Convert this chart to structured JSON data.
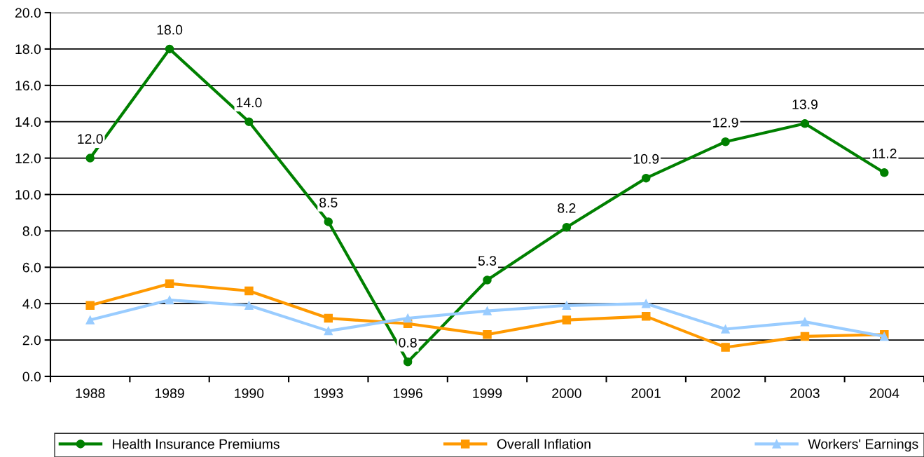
{
  "chart_data": {
    "type": "line",
    "categories": [
      "1988",
      "1989",
      "1990",
      "1993",
      "1996",
      "1999",
      "2000",
      "2001",
      "2002",
      "2003",
      "2004"
    ],
    "series": [
      {
        "name": "Health Insurance Premiums",
        "color": "#008000",
        "marker": "circle",
        "values": [
          12.0,
          18.0,
          14.0,
          8.5,
          0.8,
          5.3,
          8.2,
          10.9,
          12.9,
          13.9,
          11.2
        ],
        "value_labels": [
          "12.0",
          "18.0",
          "14.0",
          "8.5",
          "0.8",
          "5.3",
          "8.2",
          "10.9",
          "12.9",
          "13.9",
          "11.2"
        ]
      },
      {
        "name": "Overall Inflation",
        "color": "#ff9900",
        "marker": "square",
        "values": [
          3.9,
          5.1,
          4.7,
          3.2,
          2.9,
          2.3,
          3.1,
          3.3,
          1.6,
          2.2,
          2.3
        ]
      },
      {
        "name": "Workers' Earnings",
        "color": "#99ccff",
        "marker": "triangle",
        "values": [
          3.1,
          4.2,
          3.9,
          2.5,
          3.2,
          3.6,
          3.9,
          4.0,
          2.6,
          3.0,
          2.2
        ]
      }
    ],
    "ylim": [
      0,
      20
    ],
    "yticks": [
      {
        "value": 0,
        "label": "0.0"
      },
      {
        "value": 2,
        "label": "2.0"
      },
      {
        "value": 4,
        "label": "4.0"
      },
      {
        "value": 6,
        "label": "6.0"
      },
      {
        "value": 8,
        "label": "8.0"
      },
      {
        "value": 10,
        "label": "10.0"
      },
      {
        "value": 12,
        "label": "12.0"
      },
      {
        "value": 14,
        "label": "14.0"
      },
      {
        "value": 16,
        "label": "16.0"
      },
      {
        "value": 18,
        "label": "18.0"
      },
      {
        "value": 20,
        "label": "20.0"
      }
    ],
    "grid": "y",
    "legend": "bottom"
  }
}
